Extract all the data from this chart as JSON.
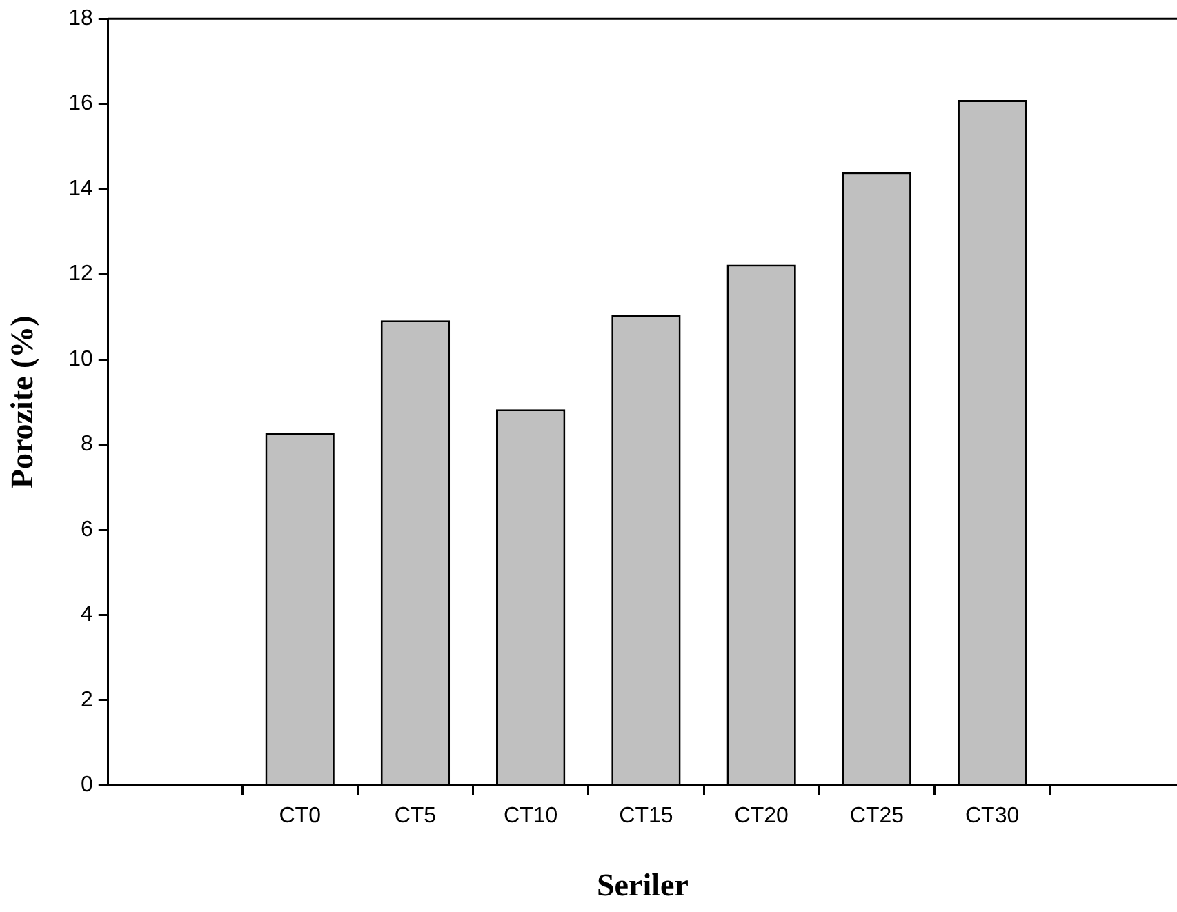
{
  "chart_data": {
    "type": "bar",
    "xlabel": "Seriler",
    "ylabel": "Porozite (%)",
    "categories": [
      "CT0",
      "CT5",
      "CT10",
      "CT15",
      "CT20",
      "CT25",
      "CT30"
    ],
    "values": [
      8.27,
      10.92,
      8.83,
      11.05,
      12.23,
      14.4,
      16.09
    ],
    "color": "#c0c0c0",
    "ylim": [
      0,
      18
    ],
    "yticks": [
      0,
      2,
      4,
      6,
      8,
      10,
      12,
      14,
      16,
      18
    ],
    "grid": false,
    "legend": false
  }
}
